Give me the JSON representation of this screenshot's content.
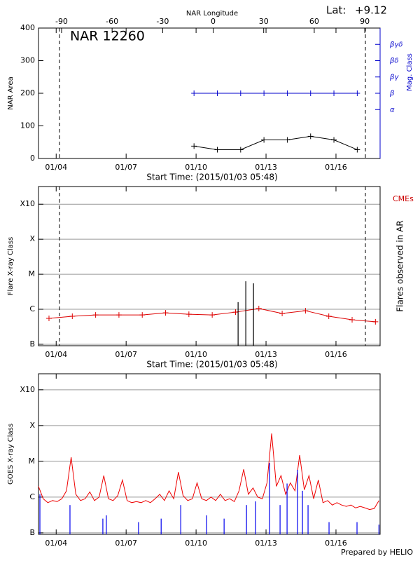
{
  "chart_data": [
    {
      "type": "line",
      "title": "NAR 12260",
      "lat_label": "Lat:",
      "lat": "+9.12",
      "xlabel": "Start Time: (2015/01/03 05:48)",
      "ylabel": "NAR Area",
      "y2label": "Mag. Class",
      "x2label": "NAR Longitude",
      "xlim": [
        0,
        14.65
      ],
      "xticks": [
        {
          "value": 0.758,
          "label": "01/04"
        },
        {
          "value": 3.758,
          "label": "01/07"
        },
        {
          "value": 6.758,
          "label": "01/10"
        },
        {
          "value": 9.758,
          "label": "01/13"
        },
        {
          "value": 12.758,
          "label": "01/16"
        }
      ],
      "x2lim": [
        -103.7,
        99.1
      ],
      "x2ticks": [
        -90,
        -60,
        -30,
        0,
        30,
        60,
        90
      ],
      "ylim": [
        0,
        400
      ],
      "yticks": [
        0,
        100,
        200,
        300,
        400
      ],
      "y2lim": [
        0,
        400
      ],
      "y2color": "#0000cc",
      "y2ticks": [
        {
          "value": 150,
          "label": "α"
        },
        {
          "value": 200,
          "label": "β"
        },
        {
          "value": 250,
          "label": "βγ"
        },
        {
          "value": 300,
          "label": "βδ"
        },
        {
          "value": 350,
          "label": "βγδ"
        }
      ],
      "vlines": [
        0.9,
        14.02
      ],
      "series": [
        {
          "color": "#000000",
          "marker": "+",
          "x": [
            6.67,
            7.67,
            8.67,
            9.67,
            10.67,
            11.67,
            12.67,
            13.67
          ],
          "values": [
            38,
            27,
            27,
            57,
            57,
            68,
            57,
            27
          ]
        },
        {
          "color": "#0000cc",
          "marker": "+",
          "axis": "y2",
          "x": [
            6.67,
            7.67,
            8.67,
            9.67,
            10.67,
            11.67,
            12.67,
            13.67
          ],
          "values": [
            200,
            200,
            200,
            200,
            200,
            200,
            200,
            200
          ]
        }
      ]
    },
    {
      "type": "line",
      "log": true,
      "grid": true,
      "xlabel": "Start Time: (2015/01/03 05:48)",
      "ylabel": "Flare X-ray Class",
      "y2label": "Flares observed in AR",
      "annotation": {
        "text": "CMEs",
        "color": "#cc0000"
      },
      "xlim": [
        0,
        14.65
      ],
      "xticks": [
        {
          "value": 0.758,
          "label": "01/04"
        },
        {
          "value": 3.758,
          "label": "01/07"
        },
        {
          "value": 6.758,
          "label": "01/10"
        },
        {
          "value": 9.758,
          "label": "01/13"
        },
        {
          "value": 12.758,
          "label": "01/16"
        }
      ],
      "ylim": [
        9.1e-08,
        0.0032
      ],
      "yticks": [
        {
          "value": 1e-07,
          "label": "B"
        },
        {
          "value": 1e-06,
          "label": "C"
        },
        {
          "value": 1e-05,
          "label": "M"
        },
        {
          "value": 0.0001,
          "label": "X"
        },
        {
          "value": 0.001,
          "label": "X10"
        }
      ],
      "vlines": [
        0.9,
        14.02
      ],
      "series": [
        {
          "color": "#dd0000",
          "marker": "+",
          "x": [
            0.45,
            1.45,
            2.45,
            3.45,
            4.45,
            5.45,
            6.45,
            7.45,
            8.45,
            9.45,
            10.45,
            11.45,
            12.45,
            13.45,
            14.45
          ],
          "values": [
            5.5e-07,
            6.3e-07,
            6.9e-07,
            6.9e-07,
            6.9e-07,
            7.9e-07,
            7.2e-07,
            6.9e-07,
            8.3e-07,
            1.05e-06,
            7.6e-07,
            9.1e-07,
            6.3e-07,
            5e-07,
            4.4e-07
          ]
        },
        {
          "type": "bar",
          "color": "#000000",
          "x": [
            8.56,
            8.89,
            9.22
          ],
          "values": [
            1.6e-06,
            6.3e-06,
            5.5e-06
          ]
        }
      ]
    },
    {
      "type": "line",
      "log": true,
      "grid": true,
      "ylabel": "GOES X-ray Class",
      "footer": "Prepared by HELIO",
      "xlim": [
        0,
        14.65
      ],
      "xticks": [
        {
          "value": 0.758,
          "label": "01/04"
        },
        {
          "value": 3.758,
          "label": "01/07"
        },
        {
          "value": 6.758,
          "label": "01/10"
        },
        {
          "value": 9.758,
          "label": "01/13"
        },
        {
          "value": 12.758,
          "label": "01/16"
        }
      ],
      "ylim": [
        9.1e-08,
        0.0028
      ],
      "yticks": [
        {
          "value": 1e-07,
          "label": "B"
        },
        {
          "value": 1e-06,
          "label": "C"
        },
        {
          "value": 1e-05,
          "label": "M"
        },
        {
          "value": 0.0001,
          "label": "X"
        },
        {
          "value": 0.001,
          "label": "X10"
        }
      ],
      "series": [
        {
          "color": "#ee0000",
          "x": [
            0,
            0.2,
            0.4,
            0.6,
            0.8,
            1,
            1.2,
            1.4,
            1.6,
            1.8,
            2,
            2.2,
            2.4,
            2.6,
            2.8,
            3,
            3.2,
            3.4,
            3.6,
            3.8,
            4,
            4.2,
            4.4,
            4.6,
            4.8,
            5,
            5.2,
            5.4,
            5.6,
            5.8,
            6,
            6.2,
            6.4,
            6.6,
            6.8,
            7,
            7.2,
            7.4,
            7.6,
            7.8,
            8,
            8.2,
            8.4,
            8.6,
            8.8,
            9,
            9.2,
            9.4,
            9.6,
            9.8,
            10,
            10.2,
            10.4,
            10.6,
            10.8,
            11,
            11.2,
            11.4,
            11.6,
            11.8,
            12,
            12.2,
            12.4,
            12.6,
            12.8,
            13,
            13.2,
            13.4,
            13.6,
            13.8,
            14,
            14.2,
            14.4,
            14.6
          ],
          "values": [
            2e-06,
            9e-07,
            7e-07,
            8e-07,
            7.5e-07,
            9e-07,
            1.5e-06,
            1.3e-05,
            1.2e-06,
            8e-07,
            9e-07,
            1.4e-06,
            8e-07,
            1e-06,
            4e-06,
            9e-07,
            8e-07,
            1.1e-06,
            3e-06,
            8e-07,
            7e-07,
            7.5e-07,
            7e-07,
            8e-07,
            7e-07,
            9e-07,
            1.2e-06,
            8e-07,
            1.5e-06,
            9e-07,
            5e-06,
            1.1e-06,
            8e-07,
            9e-07,
            2.5e-06,
            9e-07,
            8e-07,
            1e-06,
            8e-07,
            1.2e-06,
            8e-07,
            9e-07,
            7.5e-07,
            1.5e-06,
            6e-06,
            1.2e-06,
            1.8e-06,
            1e-06,
            9e-07,
            2.5e-06,
            6e-05,
            2e-06,
            4e-06,
            1.2e-06,
            2.5e-06,
            1.5e-06,
            1.5e-05,
            1.6e-06,
            4e-06,
            9e-07,
            3e-06,
            7e-07,
            8e-07,
            6e-07,
            7e-07,
            6e-07,
            5.5e-07,
            6e-07,
            5e-07,
            5.5e-07,
            5e-07,
            4.5e-07,
            4.8e-07,
            8e-07
          ]
        },
        {
          "type": "bar",
          "color": "#0000ee",
          "x": [
            0.06,
            1.35,
            2.76,
            2.91,
            4.29,
            5.26,
            6.1,
            7.21,
            7.96,
            8.92,
            9.31,
            9.91,
            10.36,
            10.66,
            11.11,
            11.32,
            11.56,
            12.46,
            13.66,
            14.6
          ],
          "values": [
            1.2e-06,
            6e-07,
            2.5e-07,
            3.1e-07,
            2e-07,
            2.5e-07,
            6e-07,
            3.1e-07,
            2.5e-07,
            6e-07,
            7.6e-07,
            9e-06,
            6e-07,
            2.4e-06,
            5.8e-06,
            1.5e-06,
            6e-07,
            2e-07,
            2e-07,
            1.7e-07
          ]
        }
      ]
    }
  ]
}
